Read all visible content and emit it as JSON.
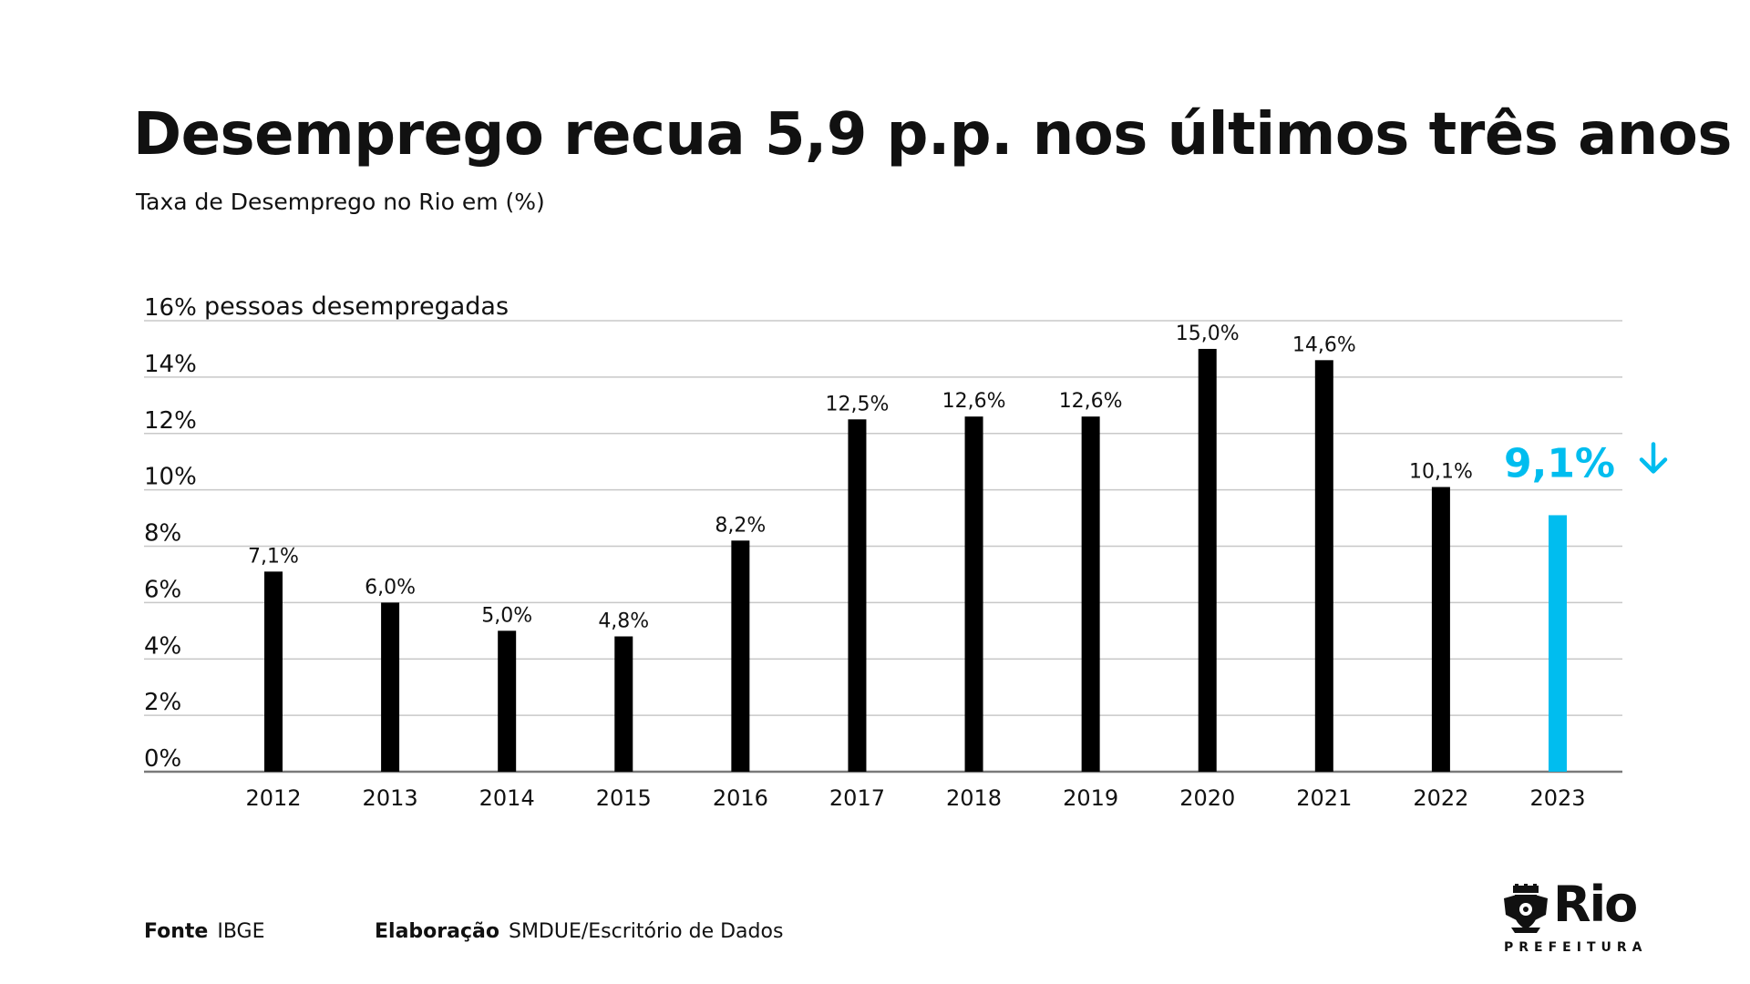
{
  "header": {
    "title": "Desemprego recua 5,9 p.p. nos últimos três anos",
    "subtitle": "Taxa de Desemprego no Rio em (%)"
  },
  "chart_data": {
    "type": "bar",
    "title": "Desemprego recua 5,9 p.p. nos últimos três anos",
    "subtitle": "Taxa de Desemprego no Rio em (%)",
    "ylabel": "pessoas desempregadas",
    "ylim": [
      0,
      16
    ],
    "yticks": [
      "0%",
      "2%",
      "4%",
      "6%",
      "8%",
      "10%",
      "12%",
      "14%",
      "16%"
    ],
    "ytick_values": [
      0,
      2,
      4,
      6,
      8,
      10,
      12,
      14,
      16
    ],
    "grid": true,
    "categories": [
      "2012",
      "2013",
      "2014",
      "2015",
      "2016",
      "2017",
      "2018",
      "2019",
      "2020",
      "2021",
      "2022",
      "2023"
    ],
    "values": [
      7.1,
      6.0,
      5.0,
      4.8,
      8.2,
      12.5,
      12.6,
      12.6,
      15.0,
      14.6,
      10.1,
      9.1
    ],
    "labels": [
      "7,1%",
      "6,0%",
      "5,0%",
      "4,8%",
      "8,2%",
      "12,5%",
      "12,6%",
      "12,6%",
      "15,0%",
      "14,6%",
      "10,1%",
      "9,1%"
    ],
    "bar_color": "#000000",
    "highlight_index": 11,
    "highlight_color": "#00BDEF",
    "highlight_icon": "arrow-down-icon",
    "grid_color": "#c8c8c8"
  },
  "footer": {
    "source_label": "Fonte",
    "source_value": "IBGE",
    "credit_label": "Elaboração",
    "credit_value": "SMDUE/Escritório de Dados"
  },
  "logo": {
    "name": "Rio",
    "subtitle": "PREFEITURA",
    "icon": "coat-of-arms-icon"
  }
}
